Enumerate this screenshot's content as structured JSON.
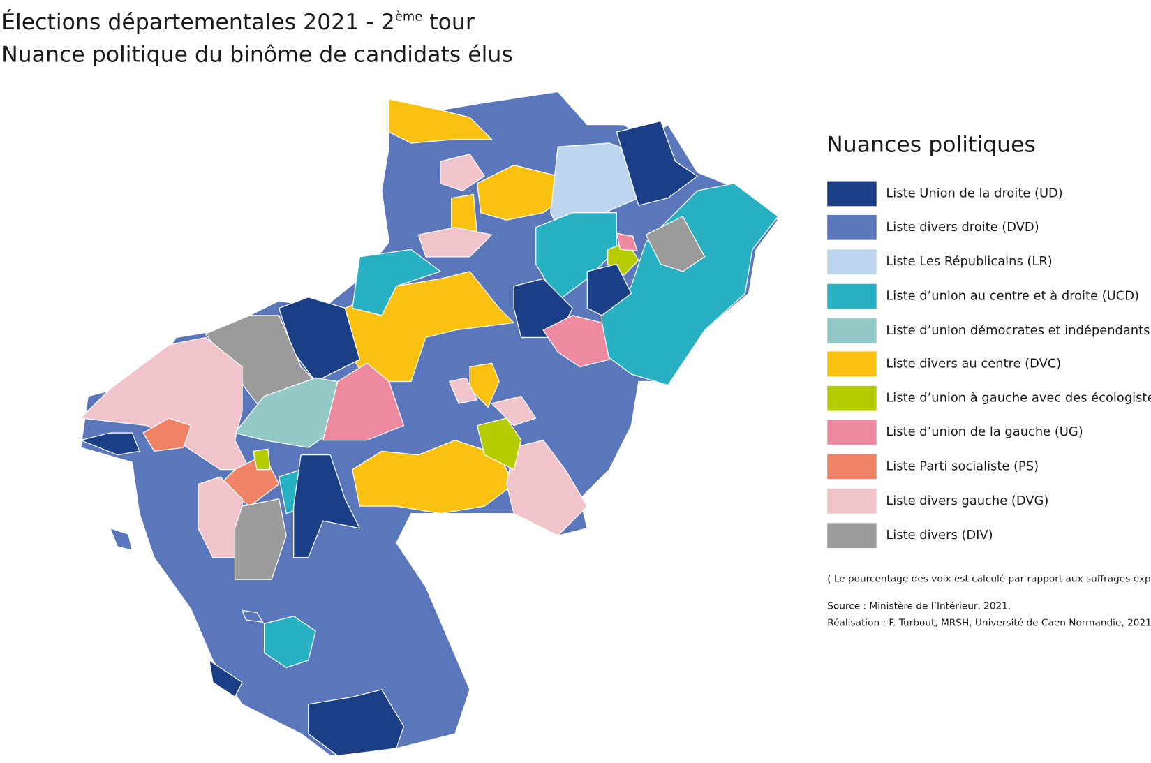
{
  "header": {
    "title_line1": {
      "text": "Élections départementales 2021 - 2",
      "sup": "ème",
      "tail": " tour"
    },
    "title_line2": "Nuance politique du binôme de candidats élus"
  },
  "legend": {
    "title": "Nuances politiques",
    "items": [
      {
        "label": "Liste Union de la droite (UD)",
        "color": "#1b3f87"
      },
      {
        "label": "Liste divers droite (DVD)",
        "color": "#5b77bb"
      },
      {
        "label": "Liste Les Républicains (LR)",
        "color": "#bdd5ef"
      },
      {
        "label": "Liste d’union au centre et à droite (UCD)",
        "color": "#27b1c2"
      },
      {
        "label": "Liste d’union démocrates et indépendants (UDI)",
        "color": "#93cac7"
      },
      {
        "label": "Liste divers au centre (DVC)",
        "color": "#fbc111"
      },
      {
        "label": "Liste d’union à gauche avec des écologistes (UGE)",
        "color": "#b5cd00"
      },
      {
        "label": "Liste d’union de la gauche (UG)",
        "color": "#ee8aa0"
      },
      {
        "label": "Liste Parti socialiste (PS)",
        "color": "#f08366"
      },
      {
        "label": "Liste divers gauche (DVG)",
        "color": "#f1c3cb"
      },
      {
        "label": "Liste divers (DIV)",
        "color": "#9b9b9b"
      }
    ]
  },
  "notes": {
    "method": "( Le pourcentage des voix est calculé par rapport aux suffrages exprimés )",
    "source": "Source : Ministère de l’Intérieur, 2021.",
    "credit": "Réalisation : F. Turbout, MRSH, Université de Caen Normandie, 2021."
  }
}
